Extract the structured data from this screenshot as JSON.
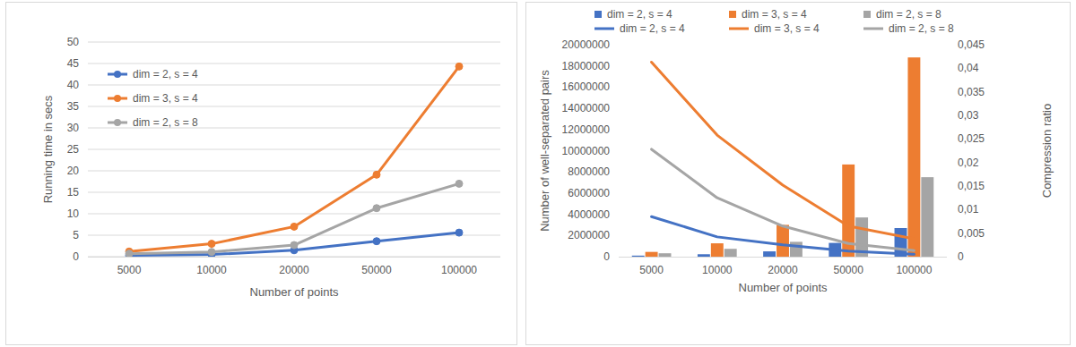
{
  "chart_data": [
    {
      "type": "line",
      "x_label": "Number of points",
      "y_label": "Running time in secs",
      "categories": [
        "5000",
        "10000",
        "20000",
        "50000",
        "100000"
      ],
      "ylim": [
        0,
        50
      ],
      "yticks": [
        0,
        5,
        10,
        15,
        20,
        25,
        30,
        35,
        40,
        45,
        50
      ],
      "grid": true,
      "legend": "upper left",
      "series": [
        {
          "name": "dim = 2, s = 4",
          "color": "#4472c4",
          "marker": "circle",
          "values": [
            0.3,
            0.5,
            1.5,
            3.6,
            5.6
          ]
        },
        {
          "name": "dim = 3, s = 4",
          "color": "#ed7d31",
          "marker": "circle",
          "values": [
            1.2,
            3.0,
            7.0,
            19.1,
            44.3
          ]
        },
        {
          "name": "dim = 2, s = 8",
          "color": "#a5a5a5",
          "marker": "circle",
          "values": [
            0.7,
            1.1,
            2.7,
            11.3,
            17.0
          ]
        }
      ]
    },
    {
      "type": "bar",
      "x_label": "Number of points",
      "y_label": "Number of well-separated pairs",
      "y2_label": "Compression ratio",
      "categories": [
        "5000",
        "10000",
        "20000",
        "50000",
        "100000"
      ],
      "ylim": [
        0,
        20000000
      ],
      "yticks": [
        0,
        2000000,
        4000000,
        6000000,
        8000000,
        10000000,
        12000000,
        14000000,
        16000000,
        18000000,
        20000000
      ],
      "y2lim": [
        0,
        0.045
      ],
      "y2ticks": [
        0,
        {
          "value": 0.005,
          "label": "0,005"
        },
        {
          "value": 0.01,
          "label": "0,01"
        },
        {
          "value": 0.015,
          "label": "0,015"
        },
        {
          "value": 0.02,
          "label": "0,02"
        },
        {
          "value": 0.025,
          "label": "0,025"
        },
        {
          "value": 0.03,
          "label": "0,03"
        },
        {
          "value": 0.035,
          "label": "0,035"
        },
        {
          "value": 0.04,
          "label": "0,04"
        },
        {
          "value": 0.045,
          "label": "0,045"
        }
      ],
      "grid": false,
      "legend": "top",
      "series": [
        {
          "name": "dim = 2, s = 4",
          "type": "bar",
          "color": "#4472c4",
          "values": [
            100000,
            230000,
            500000,
            1300000,
            2700000
          ]
        },
        {
          "name": "dim = 3, s = 4",
          "type": "bar",
          "color": "#ed7d31",
          "values": [
            450000,
            1260000,
            3000000,
            8700000,
            18800000
          ]
        },
        {
          "name": "dim = 2, s = 8",
          "type": "bar",
          "color": "#a5a5a5",
          "values": [
            320000,
            740000,
            1400000,
            3700000,
            7500000
          ]
        },
        {
          "name": "dim = 2, s = 4",
          "type": "line",
          "axis": "y2",
          "color": "#4472c4",
          "values": [
            0.0085,
            0.0042,
            0.0025,
            0.0012,
            0.0005
          ]
        },
        {
          "name": "dim = 3, s = 4",
          "type": "line",
          "axis": "y2",
          "color": "#ed7d31",
          "values": [
            0.0413,
            0.0258,
            0.0152,
            0.0065,
            0.0038
          ]
        },
        {
          "name": "dim = 2, s = 8",
          "type": "line",
          "axis": "y2",
          "color": "#a5a5a5",
          "values": [
            0.0228,
            0.0125,
            0.0065,
            0.0028,
            0.0013
          ]
        }
      ]
    }
  ]
}
